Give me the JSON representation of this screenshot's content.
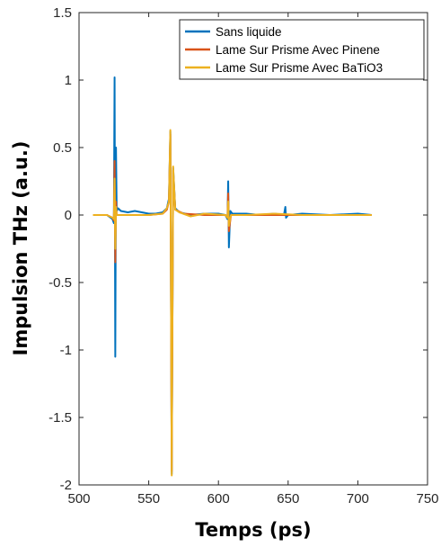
{
  "chart_data": {
    "type": "line",
    "title": "",
    "xlabel": "Temps (ps)",
    "ylabel": "Impulsion THz (a.u.)",
    "xlim": [
      500,
      750
    ],
    "ylim": [
      -2,
      1.5
    ],
    "xticks": [
      500,
      550,
      600,
      650,
      700,
      750
    ],
    "yticks": [
      -2,
      -1.5,
      -1,
      -0.5,
      0,
      0.5,
      1,
      1.5
    ],
    "xtick_labels": [
      "500",
      "550",
      "600",
      "650",
      "700",
      "750"
    ],
    "ytick_labels": [
      "-2",
      "-1.5",
      "-1",
      "-0.5",
      "0",
      "0.5",
      "1",
      "1.5"
    ],
    "grid": false,
    "legend_position": "top-right",
    "series": [
      {
        "name": "Sans liquide",
        "color": "#0072BD",
        "x": [
          510,
          520,
          524,
          525,
          525.5,
          526,
          526.5,
          527,
          528,
          530,
          535,
          540,
          545,
          550,
          555,
          560,
          563,
          564.5,
          565.5,
          566.5,
          567.5,
          569,
          572,
          580,
          590,
          600,
          605,
          606.5,
          607,
          607.5,
          608.5,
          610,
          620,
          630,
          640,
          647,
          648,
          648.5,
          650,
          660,
          680,
          700,
          710
        ],
        "y": [
          0,
          0,
          -0.03,
          -0.06,
          1.02,
          -1.05,
          0.5,
          0.03,
          0.05,
          0.03,
          0.02,
          0.03,
          0.02,
          0.01,
          0.01,
          0.02,
          0.05,
          0.12,
          0.62,
          -1.92,
          0.35,
          0.05,
          0.02,
          0.0,
          0.01,
          0.01,
          0.0,
          -0.03,
          0.25,
          -0.24,
          0.03,
          0.01,
          0.01,
          0.0,
          0.01,
          0.0,
          0.06,
          -0.02,
          0.0,
          0.01,
          0.0,
          0.01,
          0.0
        ]
      },
      {
        "name": "Lame Sur Prisme Avec Pinene",
        "color": "#D95319",
        "x": [
          510,
          520,
          524,
          525,
          525.5,
          526,
          526.5,
          527,
          530,
          540,
          550,
          560,
          563,
          564.5,
          565.5,
          566.5,
          567.5,
          569,
          575,
          590,
          605,
          606.5,
          607,
          607.5,
          609,
          620,
          640,
          660,
          680,
          700,
          710
        ],
        "y": [
          0,
          0,
          -0.02,
          -0.04,
          0.4,
          -0.35,
          0.1,
          0.0,
          0.0,
          0.0,
          0.0,
          0.01,
          0.04,
          0.1,
          0.6,
          -1.9,
          0.33,
          0.04,
          0.01,
          0.0,
          0.0,
          -0.02,
          0.16,
          -0.12,
          0.0,
          0.0,
          0.0,
          0.0,
          0.0,
          0.0,
          0.0
        ]
      },
      {
        "name": "Lame Sur Prisme Avec BaTiO3",
        "color": "#EDB120",
        "x": [
          510,
          520,
          524,
          525,
          525.5,
          526,
          526.5,
          527,
          530,
          540,
          550,
          560,
          563,
          564.5,
          565.5,
          566.5,
          567.5,
          569,
          572,
          580,
          590,
          605,
          606.5,
          607,
          607.5,
          609,
          620,
          640,
          660,
          680,
          700,
          710
        ],
        "y": [
          0,
          0,
          -0.02,
          -0.03,
          0.27,
          -0.25,
          0.06,
          0.0,
          0.0,
          0.0,
          0.0,
          0.01,
          0.05,
          0.1,
          0.63,
          -1.93,
          0.36,
          0.04,
          0.02,
          -0.01,
          0.01,
          0.0,
          -0.02,
          0.1,
          -0.08,
          0.0,
          0.0,
          0.01,
          0.0,
          0.0,
          0.0,
          0.0
        ]
      }
    ]
  }
}
